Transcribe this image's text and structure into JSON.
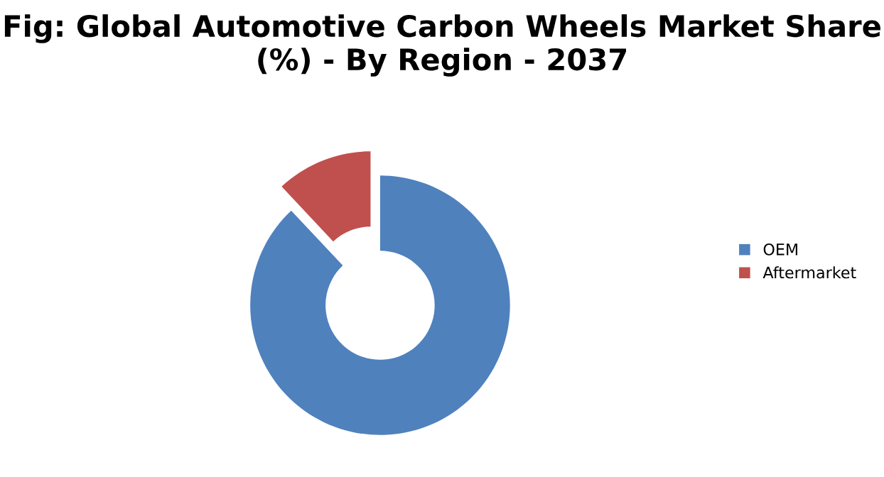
{
  "chart_data": {
    "type": "donut",
    "title": "Fig: Global Automotive Carbon Wheels Market Share (%) - By Region - 2037",
    "categories": [
      "OEM",
      "Aftermarket"
    ],
    "values": [
      88,
      12
    ],
    "colors": [
      "#4f81bd",
      "#c0504d"
    ],
    "legend": "right"
  }
}
